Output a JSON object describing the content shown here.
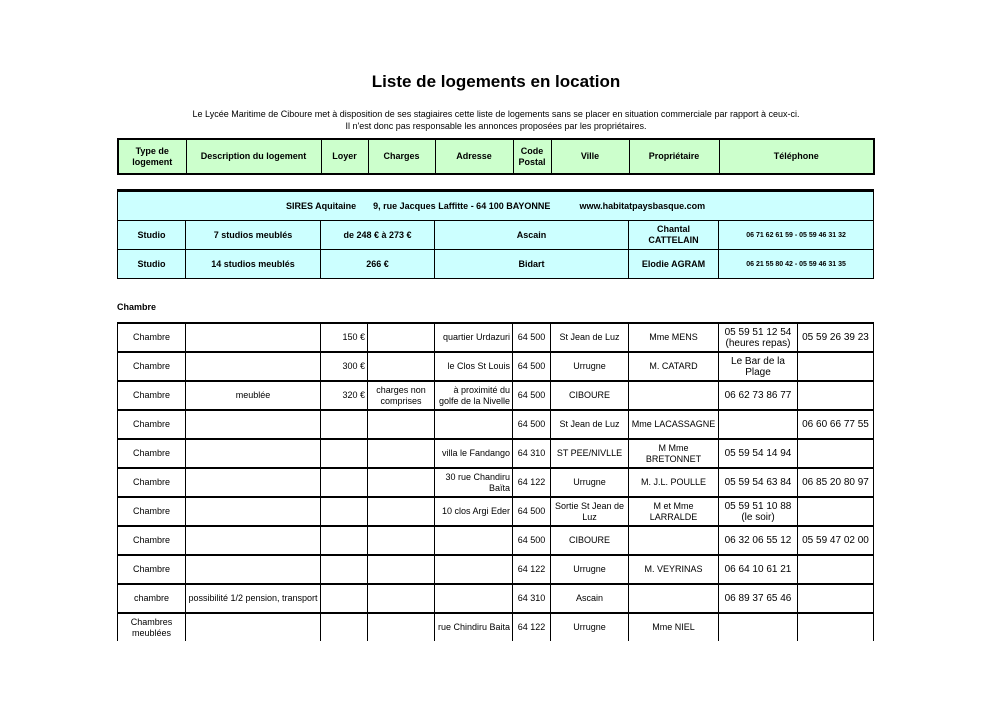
{
  "title": "Liste de logements en location",
  "intro": [
    "Le Lycée Maritime de Ciboure met à disposition de ses stagiaires cette liste de logements sans se placer en situation commerciale par rapport à ceux-ci.",
    "Il n'est donc pas responsable les annonces proposées par les propriétaires."
  ],
  "headers": [
    "Type de logement",
    "Description du logement",
    "Loyer",
    "Charges",
    "Adresse",
    "Code Postal",
    "Ville",
    "Propriétaire",
    "Téléphone"
  ],
  "sires": {
    "name": "SIRES Aquitaine",
    "address": "9, rue Jacques Laffitte - 64 100  BAYONNE",
    "website": "www.habitatpaysbasque.com",
    "rows": [
      {
        "type": "Studio",
        "description": "7 studios meublés",
        "loyer": "de 248 € à 273 €",
        "ville": "Ascain",
        "proprietaire": "Chantal CATTELAIN",
        "telephone": "06 71 62 61 59  -  05 59 46 31 32"
      },
      {
        "type": "Studio",
        "description": "14 studios meublés",
        "loyer": "266 €",
        "ville": "Bidart",
        "proprietaire": "Elodie AGRAM",
        "telephone": "06 21 55 80 42  -  05 59 46 31 35"
      }
    ]
  },
  "section_label": "Chambre",
  "chambres": [
    {
      "type": "Chambre",
      "description": "",
      "loyer": "150 €",
      "charges": "",
      "adresse": "quartier Urdazuri",
      "cp": "64  500",
      "ville": "St Jean de Luz",
      "proprietaire": "Mme MENS",
      "tel1": "05 59 51 12 54 (heures repas)",
      "tel2": "05 59 26 39 23"
    },
    {
      "type": "Chambre",
      "description": "",
      "loyer": "300 €",
      "charges": "",
      "adresse": "le Clos St Louis",
      "cp": "64 500",
      "ville": "Urrugne",
      "proprietaire": "M. CATARD",
      "tel1": "Le Bar de la Plage",
      "tel2": ""
    },
    {
      "type": "Chambre",
      "description": "meublée",
      "loyer": "320 €",
      "charges": "charges non comprises",
      "adresse": "à proximité du golfe de la Nivelle",
      "cp": "64 500",
      "ville": "CIBOURE",
      "proprietaire": "",
      "tel1": "06 62 73 86 77",
      "tel2": ""
    },
    {
      "type": "Chambre",
      "description": "",
      "loyer": "",
      "charges": "",
      "adresse": "",
      "cp": "64 500",
      "ville": "St Jean de Luz",
      "proprietaire": "Mme LACASSAGNE",
      "tel1": "",
      "tel2": "06 60 66 77 55"
    },
    {
      "type": "Chambre",
      "description": "",
      "loyer": "",
      "charges": "",
      "adresse": "villa le Fandango",
      "cp": "64 310",
      "ville": "ST PEE/NIVLLE",
      "proprietaire": "M Mme BRETONNET",
      "tel1": "05 59 54 14 94",
      "tel2": ""
    },
    {
      "type": "Chambre",
      "description": "",
      "loyer": "",
      "charges": "",
      "adresse": "30 rue Chandiru Baïta",
      "cp": "64 122",
      "ville": "Urrugne",
      "proprietaire": "M. J.L. POULLE",
      "tel1": "05 59 54 63 84",
      "tel2": "06 85 20 80 97"
    },
    {
      "type": "Chambre",
      "description": "",
      "loyer": "",
      "charges": "",
      "adresse": "10 clos Argi Eder",
      "cp": "64 500",
      "ville": "Sortie St Jean de Luz",
      "proprietaire": "M et Mme LARRALDE",
      "tel1": "05 59 51 10 88 (le soir)",
      "tel2": ""
    },
    {
      "type": "Chambre",
      "description": "",
      "loyer": "",
      "charges": "",
      "adresse": "",
      "cp": "64 500",
      "ville": "CIBOURE",
      "proprietaire": "",
      "tel1": "06 32 06 55 12",
      "tel2": "05 59 47 02 00"
    },
    {
      "type": "Chambre",
      "description": "",
      "loyer": "",
      "charges": "",
      "adresse": "",
      "cp": "64 122",
      "ville": "Urrugne",
      "proprietaire": "M. VEYRINAS",
      "tel1": "06 64 10 61 21",
      "tel2": ""
    },
    {
      "type": "chambre",
      "description": "possibilité 1/2 pension, transport",
      "loyer": "",
      "charges": "",
      "adresse": "",
      "cp": "64 310",
      "ville": "Ascain",
      "proprietaire": "",
      "tel1": "06 89 37 65 46",
      "tel2": ""
    },
    {
      "type": "Chambres meublées",
      "description": "",
      "loyer": "",
      "charges": "",
      "adresse": "rue Chindiru Baita",
      "cp": "64 122",
      "ville": "Urrugne",
      "proprietaire": "Mme NIEL",
      "tel1": "",
      "tel2": ""
    }
  ]
}
